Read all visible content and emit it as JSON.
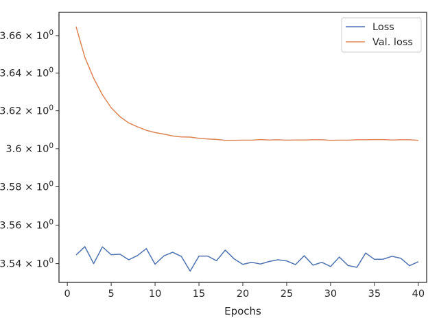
{
  "chart_data": {
    "type": "line",
    "xlabel": "Epochs",
    "ylabel": "",
    "xlim": [
      -0.95,
      40.95
    ],
    "ylim": [
      3.5303,
      3.6725
    ],
    "yscale": "log",
    "grid": false,
    "legend_position": "top-right",
    "x_ticks": [
      0,
      5,
      10,
      15,
      20,
      25,
      30,
      35,
      40
    ],
    "x_tick_labels": [
      "0",
      "5",
      "10",
      "15",
      "20",
      "25",
      "30",
      "35",
      "40"
    ],
    "y_ticks": [
      3.54,
      3.56,
      3.58,
      3.6,
      3.62,
      3.64,
      3.66
    ],
    "y_tick_labels": [
      {
        "mantissa": "3.54",
        "base": "10",
        "exp": "0"
      },
      {
        "mantissa": "3.56",
        "base": "10",
        "exp": "0"
      },
      {
        "mantissa": "3.58",
        "base": "10",
        "exp": "0"
      },
      {
        "mantissa": "3.6",
        "base": "10",
        "exp": "0"
      },
      {
        "mantissa": "3.62",
        "base": "10",
        "exp": "0"
      },
      {
        "mantissa": "3.64",
        "base": "10",
        "exp": "0"
      },
      {
        "mantissa": "3.66",
        "base": "10",
        "exp": "0"
      }
    ],
    "x": [
      1,
      2,
      3,
      4,
      5,
      6,
      7,
      8,
      9,
      10,
      11,
      12,
      13,
      14,
      15,
      16,
      17,
      18,
      19,
      20,
      21,
      22,
      23,
      24,
      25,
      26,
      27,
      28,
      29,
      30,
      31,
      32,
      33,
      34,
      35,
      36,
      37,
      38,
      39,
      40
    ],
    "series": [
      {
        "name": "Loss",
        "color": "#4c72b0",
        "values": [
          3.5445,
          3.5488,
          3.54,
          3.5487,
          3.5446,
          3.5449,
          3.542,
          3.5442,
          3.5478,
          3.5397,
          3.544,
          3.5459,
          3.5437,
          3.5361,
          3.5439,
          3.5439,
          3.5415,
          3.547,
          3.5425,
          3.5396,
          3.5407,
          3.5398,
          3.5411,
          3.542,
          3.5414,
          3.5395,
          3.5441,
          3.5392,
          3.5407,
          3.5385,
          3.5434,
          3.539,
          3.5381,
          3.5455,
          3.5422,
          3.5423,
          3.5438,
          3.5428,
          3.5389,
          3.541
        ]
      },
      {
        "name": "Val. loss",
        "color": "#dd8452",
        "values": [
          3.6648,
          3.6484,
          3.6373,
          3.6285,
          3.6216,
          3.6169,
          3.6136,
          3.6115,
          3.6097,
          3.6085,
          3.6077,
          3.6067,
          3.6062,
          3.6061,
          3.6055,
          3.6051,
          3.6049,
          3.6044,
          3.6044,
          3.6045,
          3.6045,
          3.6048,
          3.6046,
          3.6047,
          3.6045,
          3.6046,
          3.6046,
          3.6047,
          3.6047,
          3.6044,
          3.6045,
          3.6045,
          3.6047,
          3.6047,
          3.6048,
          3.6048,
          3.6046,
          3.6047,
          3.6047,
          3.6044
        ]
      }
    ]
  }
}
